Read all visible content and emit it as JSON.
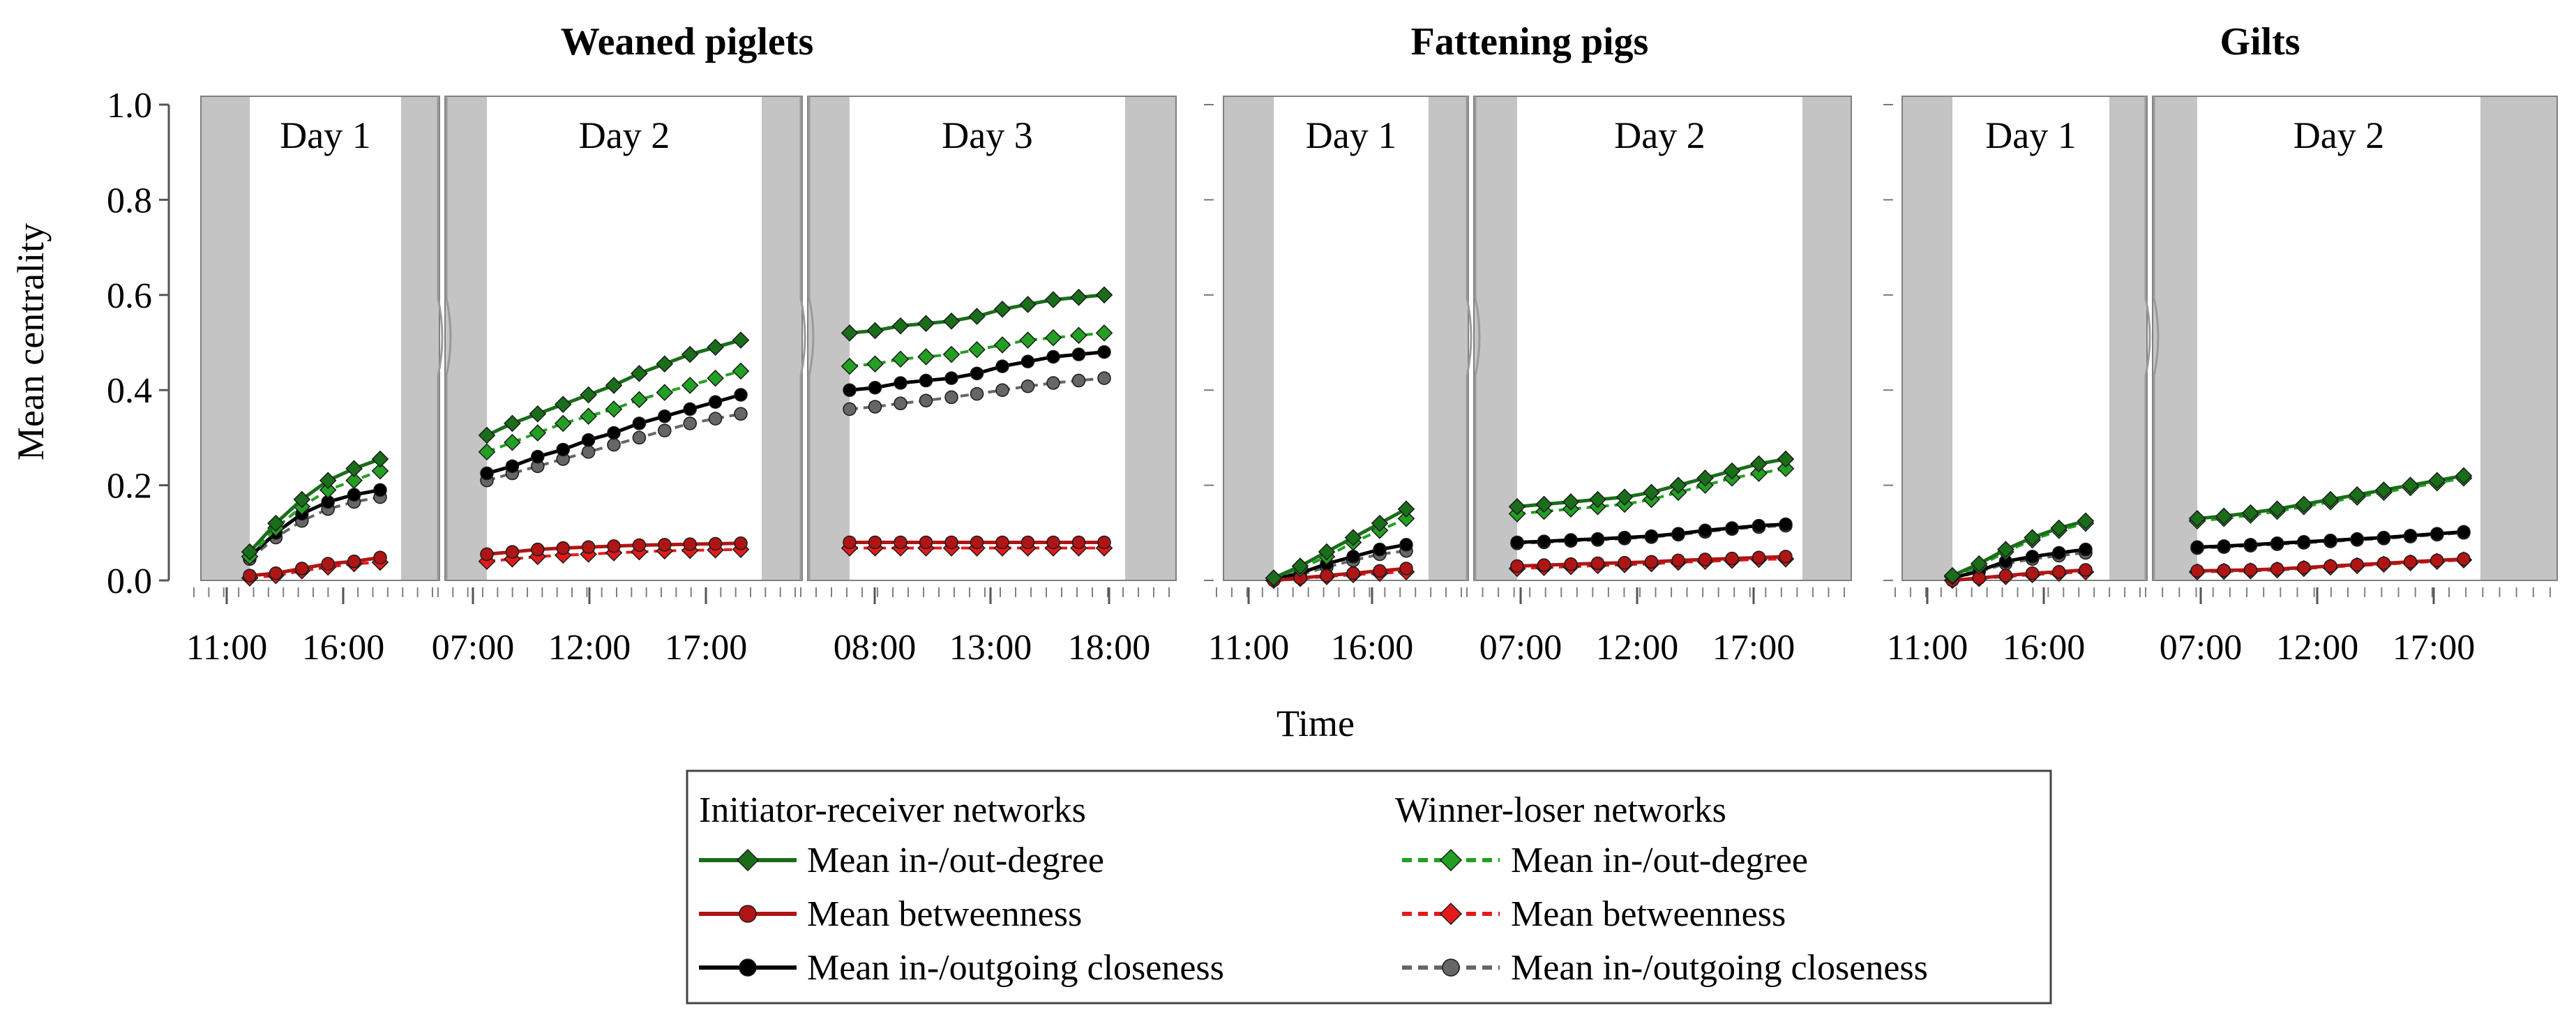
{
  "chart_data": {
    "type": "line",
    "ylabel": "Mean centrality",
    "xlabel": "Time",
    "ylim": [
      0,
      1
    ],
    "yticks": [
      "0.0",
      "0.2",
      "0.4",
      "0.6",
      "0.8",
      "1.0"
    ],
    "groups": [
      {
        "title": "Weaned piglets"
      },
      {
        "title": "Fattening pigs"
      },
      {
        "title": "Gilts"
      }
    ],
    "colors": {
      "degree_ir": "#1a6e1a",
      "degree_wl": "#23a023",
      "between_ir": "#b01515",
      "between_wl": "#e41a1a",
      "close_ir": "#000000",
      "close_wl": "#666666",
      "night": "#c4c4c4",
      "frame": "#808080"
    },
    "panels": [
      {
        "group": 0,
        "label": "Day 1",
        "tick_labels": [
          "11:00",
          "16:00"
        ],
        "series": {
          "degree_ir": [
            0.06,
            0.12,
            0.17,
            0.21,
            0.235,
            0.255
          ],
          "degree_wl": [
            0.05,
            0.11,
            0.155,
            0.19,
            0.21,
            0.23
          ],
          "between_ir": [
            0.01,
            0.015,
            0.025,
            0.035,
            0.04,
            0.048
          ],
          "between_wl": [
            0.005,
            0.01,
            0.02,
            0.028,
            0.035,
            0.038
          ],
          "close_ir": [
            0.05,
            0.1,
            0.14,
            0.165,
            0.18,
            0.19
          ],
          "close_wl": [
            0.045,
            0.09,
            0.125,
            0.15,
            0.165,
            0.175
          ]
        }
      },
      {
        "group": 0,
        "label": "Day 2",
        "tick_labels": [
          "07:00",
          "12:00",
          "17:00"
        ],
        "series": {
          "degree_ir": [
            0.305,
            0.33,
            0.35,
            0.37,
            0.39,
            0.41,
            0.435,
            0.455,
            0.475,
            0.49,
            0.505
          ],
          "degree_wl": [
            0.27,
            0.29,
            0.31,
            0.33,
            0.345,
            0.36,
            0.38,
            0.395,
            0.41,
            0.425,
            0.44
          ],
          "between_ir": [
            0.055,
            0.06,
            0.065,
            0.068,
            0.07,
            0.072,
            0.074,
            0.075,
            0.076,
            0.077,
            0.078
          ],
          "between_wl": [
            0.04,
            0.045,
            0.05,
            0.053,
            0.055,
            0.058,
            0.06,
            0.062,
            0.063,
            0.064,
            0.065
          ],
          "close_ir": [
            0.225,
            0.24,
            0.26,
            0.275,
            0.295,
            0.31,
            0.33,
            0.345,
            0.36,
            0.375,
            0.39
          ],
          "close_wl": [
            0.21,
            0.225,
            0.24,
            0.255,
            0.27,
            0.285,
            0.3,
            0.315,
            0.33,
            0.34,
            0.35
          ]
        }
      },
      {
        "group": 0,
        "label": "Day 3",
        "tick_labels": [
          "08:00",
          "13:00",
          "18:00"
        ],
        "series": {
          "degree_ir": [
            0.52,
            0.525,
            0.535,
            0.54,
            0.545,
            0.555,
            0.57,
            0.58,
            0.59,
            0.595,
            0.6
          ],
          "degree_wl": [
            0.45,
            0.455,
            0.465,
            0.47,
            0.475,
            0.485,
            0.495,
            0.505,
            0.51,
            0.515,
            0.52
          ],
          "between_ir": [
            0.08,
            0.08,
            0.08,
            0.08,
            0.08,
            0.08,
            0.08,
            0.08,
            0.08,
            0.08,
            0.08
          ],
          "between_wl": [
            0.068,
            0.068,
            0.068,
            0.068,
            0.068,
            0.068,
            0.068,
            0.068,
            0.068,
            0.068,
            0.068
          ],
          "close_ir": [
            0.4,
            0.405,
            0.415,
            0.42,
            0.425,
            0.435,
            0.45,
            0.46,
            0.47,
            0.475,
            0.48
          ],
          "close_wl": [
            0.36,
            0.365,
            0.372,
            0.378,
            0.385,
            0.392,
            0.4,
            0.408,
            0.415,
            0.42,
            0.425
          ]
        }
      },
      {
        "group": 1,
        "label": "Day 1",
        "tick_labels": [
          "11:00",
          "16:00"
        ],
        "series": {
          "degree_ir": [
            0.005,
            0.03,
            0.06,
            0.09,
            0.12,
            0.15
          ],
          "degree_wl": [
            0.005,
            0.025,
            0.05,
            0.08,
            0.105,
            0.13
          ],
          "between_ir": [
            0.0,
            0.005,
            0.01,
            0.015,
            0.02,
            0.025
          ],
          "between_wl": [
            0.0,
            0.004,
            0.008,
            0.012,
            0.015,
            0.018
          ],
          "close_ir": [
            0.003,
            0.015,
            0.035,
            0.05,
            0.065,
            0.075
          ],
          "close_wl": [
            0.002,
            0.012,
            0.028,
            0.042,
            0.055,
            0.062
          ]
        }
      },
      {
        "group": 1,
        "label": "Day 2",
        "tick_labels": [
          "07:00",
          "12:00",
          "17:00"
        ],
        "series": {
          "degree_ir": [
            0.155,
            0.16,
            0.165,
            0.17,
            0.175,
            0.185,
            0.2,
            0.215,
            0.23,
            0.245,
            0.255
          ],
          "degree_wl": [
            0.14,
            0.145,
            0.15,
            0.155,
            0.16,
            0.17,
            0.185,
            0.2,
            0.215,
            0.225,
            0.235
          ],
          "between_ir": [
            0.03,
            0.032,
            0.034,
            0.036,
            0.037,
            0.039,
            0.042,
            0.044,
            0.046,
            0.048,
            0.05
          ],
          "between_wl": [
            0.025,
            0.027,
            0.029,
            0.031,
            0.033,
            0.035,
            0.038,
            0.04,
            0.042,
            0.044,
            0.045
          ],
          "close_ir": [
            0.08,
            0.082,
            0.085,
            0.087,
            0.09,
            0.093,
            0.098,
            0.105,
            0.11,
            0.115,
            0.118
          ],
          "close_wl": [
            0.078,
            0.08,
            0.083,
            0.085,
            0.088,
            0.091,
            0.096,
            0.102,
            0.108,
            0.112,
            0.115
          ]
        }
      },
      {
        "group": 2,
        "label": "Day 1",
        "tick_labels": [
          "11:00",
          "16:00"
        ],
        "series": {
          "degree_ir": [
            0.01,
            0.035,
            0.065,
            0.09,
            0.11,
            0.125
          ],
          "degree_wl": [
            0.008,
            0.03,
            0.06,
            0.085,
            0.105,
            0.12
          ],
          "between_ir": [
            0.0,
            0.005,
            0.01,
            0.015,
            0.018,
            0.022
          ],
          "between_wl": [
            0.0,
            0.004,
            0.008,
            0.012,
            0.015,
            0.018
          ],
          "close_ir": [
            0.005,
            0.02,
            0.04,
            0.05,
            0.058,
            0.065
          ],
          "close_wl": [
            0.004,
            0.018,
            0.035,
            0.045,
            0.052,
            0.058
          ]
        }
      },
      {
        "group": 2,
        "label": "Day 2",
        "tick_labels": [
          "07:00",
          "12:00",
          "17:00"
        ],
        "series": {
          "degree_ir": [
            0.13,
            0.135,
            0.142,
            0.15,
            0.16,
            0.17,
            0.18,
            0.19,
            0.2,
            0.21,
            0.22
          ],
          "degree_wl": [
            0.125,
            0.13,
            0.137,
            0.145,
            0.155,
            0.165,
            0.175,
            0.185,
            0.195,
            0.205,
            0.215
          ],
          "between_ir": [
            0.02,
            0.021,
            0.022,
            0.024,
            0.027,
            0.03,
            0.033,
            0.036,
            0.039,
            0.042,
            0.045
          ],
          "between_wl": [
            0.018,
            0.019,
            0.02,
            0.022,
            0.025,
            0.028,
            0.031,
            0.034,
            0.037,
            0.04,
            0.043
          ],
          "close_ir": [
            0.07,
            0.072,
            0.075,
            0.078,
            0.081,
            0.084,
            0.087,
            0.09,
            0.094,
            0.098,
            0.102
          ],
          "close_wl": [
            0.068,
            0.07,
            0.073,
            0.076,
            0.079,
            0.082,
            0.085,
            0.088,
            0.092,
            0.096,
            0.1
          ]
        }
      }
    ],
    "legend": {
      "ir_title": "Initiator-receiver networks",
      "wl_title": "Winner-loser networks",
      "ir_items": [
        {
          "label": "Mean in-/out-degree",
          "series": "degree_ir",
          "marker": "diamond",
          "dash": false
        },
        {
          "label": "Mean betweenness",
          "series": "between_ir",
          "marker": "circle",
          "dash": false
        },
        {
          "label": "Mean in-/outgoing closeness",
          "series": "close_ir",
          "marker": "circle",
          "dash": false
        }
      ],
      "wl_items": [
        {
          "label": "Mean in-/out-degree",
          "series": "degree_wl",
          "marker": "diamond",
          "dash": true
        },
        {
          "label": "Mean betweenness",
          "series": "between_wl",
          "marker": "diamond",
          "dash": true
        },
        {
          "label": "Mean in-/outgoing closeness",
          "series": "close_wl",
          "marker": "circle",
          "dash": true
        }
      ]
    }
  }
}
